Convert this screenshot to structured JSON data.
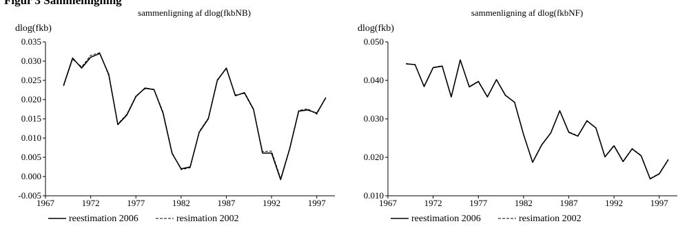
{
  "figure_heading": "Figur 3 Sammenligning",
  "chart_data": [
    {
      "type": "line",
      "title": "sammenligning af dlog(fkbNB)",
      "ylabel": "dlog(fkb)",
      "xlabel": "",
      "ylim": [
        -0.005,
        0.035
      ],
      "yticks": [
        "-0.005",
        "0.000",
        "0.005",
        "0.010",
        "0.015",
        "0.020",
        "0.025",
        "0.030",
        "0.035"
      ],
      "xlim": [
        1967,
        1999
      ],
      "xticks": [
        "1967",
        "1972",
        "1977",
        "1982",
        "1987",
        "1992",
        "1997"
      ],
      "grid": false,
      "legend": "bottom",
      "x": [
        1969,
        1970,
        1971,
        1972,
        1973,
        1974,
        1975,
        1976,
        1977,
        1978,
        1979,
        1980,
        1981,
        1982,
        1983,
        1984,
        1985,
        1986,
        1987,
        1988,
        1989,
        1990,
        1991,
        1992,
        1993,
        1994,
        1995,
        1996,
        1997,
        1998
      ],
      "series": [
        {
          "name": "reestimation 2006",
          "style": "solid",
          "values": [
            0.0237,
            0.0308,
            0.0282,
            0.031,
            0.032,
            0.0265,
            0.0135,
            0.016,
            0.0208,
            0.023,
            0.0226,
            0.0165,
            0.006,
            0.002,
            0.0025,
            0.0115,
            0.015,
            0.025,
            0.0282,
            0.021,
            0.0218,
            0.0175,
            0.0061,
            0.0061,
            -0.0008,
            0.0072,
            0.017,
            0.0173,
            0.0165,
            0.0205
          ]
        },
        {
          "name": "resimation 2002",
          "style": "dashed",
          "values": [
            0.0235,
            0.0305,
            0.0285,
            0.0315,
            0.0322,
            0.0262,
            0.0137,
            0.0162,
            0.021,
            0.0228,
            0.0227,
            0.0168,
            0.0062,
            0.0018,
            0.0023,
            0.0117,
            0.0152,
            0.0252,
            0.028,
            0.0212,
            0.0216,
            0.0173,
            0.0065,
            0.0066,
            -0.0005,
            0.0074,
            0.0172,
            0.0176,
            0.0162,
            0.0206
          ]
        }
      ]
    },
    {
      "type": "line",
      "title": "sammenligning af dlog(fkbNF)",
      "ylabel": "dlog(fkb)",
      "xlabel": "",
      "ylim": [
        0.01,
        0.05
      ],
      "yticks": [
        "0.010",
        "0.020",
        "0.030",
        "0.040",
        "0.050"
      ],
      "xlim": [
        1967,
        1999
      ],
      "xticks": [
        "1967",
        "1972",
        "1977",
        "1982",
        "1987",
        "1992",
        "1997"
      ],
      "grid": false,
      "legend": "bottom",
      "x": [
        1969,
        1970,
        1971,
        1972,
        1973,
        1974,
        1975,
        1976,
        1977,
        1978,
        1979,
        1980,
        1981,
        1982,
        1983,
        1984,
        1985,
        1986,
        1987,
        1988,
        1989,
        1990,
        1991,
        1992,
        1993,
        1994,
        1995,
        1996,
        1997,
        1998
      ],
      "series": [
        {
          "name": "reestimation 2006",
          "style": "solid",
          "values": [
            0.0443,
            0.0441,
            0.0384,
            0.0433,
            0.0437,
            0.0357,
            0.0453,
            0.0383,
            0.0397,
            0.0357,
            0.0402,
            0.0361,
            0.0343,
            0.0259,
            0.0187,
            0.0232,
            0.0263,
            0.0321,
            0.0265,
            0.0255,
            0.0295,
            0.0276,
            0.0201,
            0.023,
            0.0189,
            0.0222,
            0.0204,
            0.0144,
            0.0157,
            0.0194
          ]
        },
        {
          "name": "resimation 2002",
          "style": "dashed",
          "values": [
            0.0444,
            0.044,
            0.0385,
            0.0434,
            0.0438,
            0.0358,
            0.0452,
            0.0384,
            0.0398,
            0.0358,
            0.0401,
            0.036,
            0.0344,
            0.0258,
            0.0188,
            0.0233,
            0.0264,
            0.032,
            0.0266,
            0.0256,
            0.0294,
            0.0277,
            0.0202,
            0.0231,
            0.019,
            0.0223,
            0.0205,
            0.0145,
            0.0158,
            0.0195
          ]
        }
      ]
    }
  ]
}
